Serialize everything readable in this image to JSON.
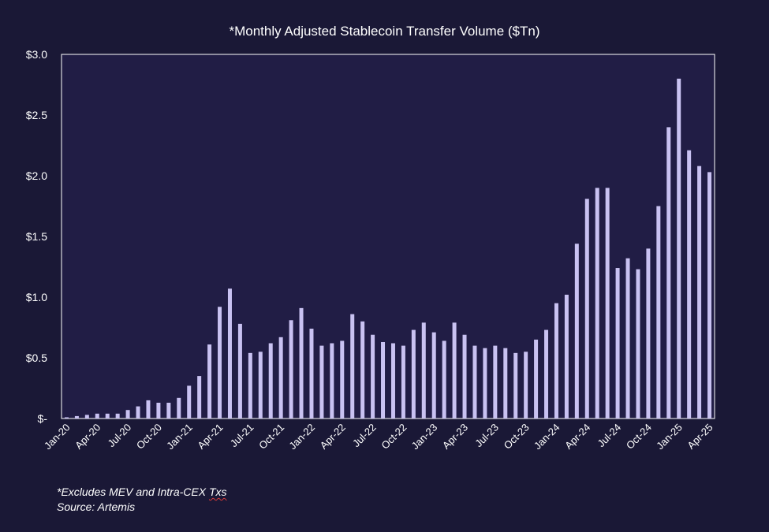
{
  "chart_data": {
    "type": "bar",
    "title": "*Monthly Adjusted Stablecoin Transfer Volume ($Tn)",
    "xlabel": "",
    "ylabel": "",
    "ylim": [
      0,
      3.0
    ],
    "yticks": [
      {
        "value": 0,
        "label": "$-"
      },
      {
        "value": 0.5,
        "label": "$0.5"
      },
      {
        "value": 1.0,
        "label": "$1.0"
      },
      {
        "value": 1.5,
        "label": "$1.5"
      },
      {
        "value": 2.0,
        "label": "$2.0"
      },
      {
        "value": 2.5,
        "label": "$2.5"
      },
      {
        "value": 3.0,
        "label": "$3.0"
      }
    ],
    "categories": [
      "Jan-20",
      "Feb-20",
      "Mar-20",
      "Apr-20",
      "May-20",
      "Jun-20",
      "Jul-20",
      "Aug-20",
      "Sep-20",
      "Oct-20",
      "Nov-20",
      "Dec-20",
      "Jan-21",
      "Feb-21",
      "Mar-21",
      "Apr-21",
      "May-21",
      "Jun-21",
      "Jul-21",
      "Aug-21",
      "Sep-21",
      "Oct-21",
      "Nov-21",
      "Dec-21",
      "Jan-22",
      "Feb-22",
      "Mar-22",
      "Apr-22",
      "May-22",
      "Jun-22",
      "Jul-22",
      "Aug-22",
      "Sep-22",
      "Oct-22",
      "Nov-22",
      "Dec-22",
      "Jan-23",
      "Feb-23",
      "Mar-23",
      "Apr-23",
      "May-23",
      "Jun-23",
      "Jul-23",
      "Aug-23",
      "Sep-23",
      "Oct-23",
      "Nov-23",
      "Dec-23",
      "Jan-24",
      "Feb-24",
      "Mar-24",
      "Apr-24",
      "May-24",
      "Jun-24",
      "Jul-24",
      "Aug-24",
      "Sep-24",
      "Oct-24",
      "Nov-24",
      "Dec-24",
      "Jan-25",
      "Feb-25",
      "Mar-25",
      "Apr-25"
    ],
    "tick_labels": [
      "Jan-20",
      "Apr-20",
      "Jul-20",
      "Oct-20",
      "Jan-21",
      "Apr-21",
      "Jul-21",
      "Oct-21",
      "Jan-22",
      "Apr-22",
      "Jul-22",
      "Oct-22",
      "Jan-23",
      "Apr-23",
      "Jul-23",
      "Oct-23",
      "Jan-24",
      "Apr-24",
      "Jul-24",
      "Oct-24",
      "Jan-25",
      "Apr-25"
    ],
    "values": [
      0.01,
      0.02,
      0.03,
      0.04,
      0.04,
      0.04,
      0.07,
      0.1,
      0.15,
      0.13,
      0.13,
      0.17,
      0.27,
      0.35,
      0.61,
      0.92,
      1.07,
      0.78,
      0.54,
      0.55,
      0.62,
      0.67,
      0.81,
      0.91,
      0.74,
      0.6,
      0.62,
      0.64,
      0.86,
      0.8,
      0.69,
      0.63,
      0.62,
      0.6,
      0.73,
      0.79,
      0.71,
      0.64,
      0.79,
      0.69,
      0.6,
      0.58,
      0.6,
      0.58,
      0.54,
      0.55,
      0.65,
      0.73,
      0.95,
      1.02,
      1.44,
      1.81,
      1.9,
      1.9,
      1.24,
      1.32,
      1.23,
      1.4,
      1.75,
      2.4,
      2.8,
      2.21,
      2.08,
      2.03
    ],
    "bar_color": "#c9c2f2",
    "plot_bg": "#211d45",
    "page_bg": "#1a1836"
  },
  "footnote": {
    "line1_prefix": "*Excludes MEV and Intra-CEX ",
    "line1_word": "Txs",
    "line2": "Source: Artemis"
  }
}
